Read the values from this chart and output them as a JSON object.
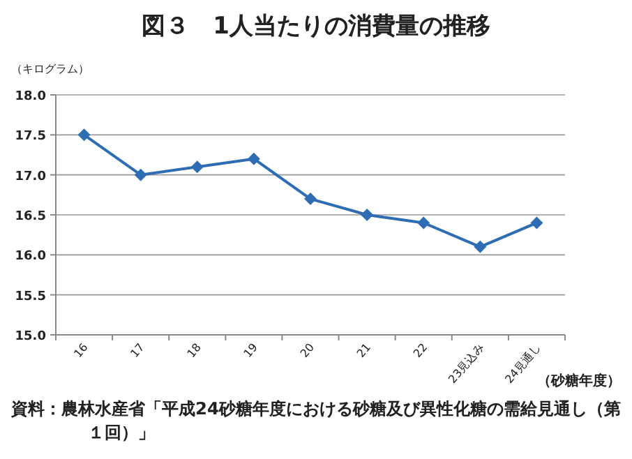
{
  "chart_data": {
    "type": "line",
    "title": "図３　1人当たりの消費量の推移",
    "ylabel": "（キログラム）",
    "xlabel": "（砂糖年度）",
    "categories": [
      "16",
      "17",
      "18",
      "19",
      "20",
      "21",
      "22",
      "23見込み",
      "24見通し"
    ],
    "series": [
      {
        "color": "#2e6db4",
        "values": [
          17.5,
          17.0,
          17.1,
          17.2,
          16.7,
          16.5,
          16.4,
          16.1,
          16.4
        ]
      }
    ],
    "ylim": [
      15,
      18
    ],
    "yticks": [
      {
        "value": 15,
        "label": "15.0"
      },
      {
        "value": 15.5,
        "label": "15.5"
      },
      {
        "value": 16,
        "label": "16.0"
      },
      {
        "value": 16.5,
        "label": "16.5"
      },
      {
        "value": 17,
        "label": "17.0"
      },
      {
        "value": 17.5,
        "label": "17.5"
      },
      {
        "value": 18,
        "label": "18.0"
      }
    ],
    "grid": "y",
    "marker": "diamond",
    "line_style": "solid",
    "annotations": [
      "資料：農林水産省「平成24砂糖年度における砂糖及び異性化糖の需給見通し（第１回）」"
    ]
  }
}
